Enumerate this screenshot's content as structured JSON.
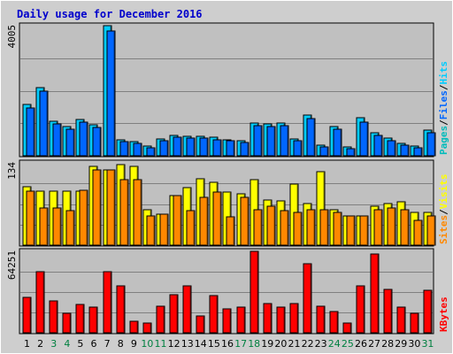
{
  "title": "Daily usage for December 2016",
  "colors": {
    "background": "#ffffff",
    "frame": "#cecece",
    "plot_bg": "#c0c0c0",
    "grid": "#808080",
    "title": "#0000cc",
    "hits": "#00ccff",
    "files": "#0066ff",
    "pages": "#00bbbb",
    "visits": "#ffff00",
    "sites": "#ff8800",
    "kbytes": "#ff0000",
    "weekend": "#008040",
    "day": "#000000"
  },
  "legends": {
    "top": [
      {
        "text": "Pages",
        "key": "pages"
      },
      {
        "text": "/",
        "key": "day"
      },
      {
        "text": "Files",
        "key": "files"
      },
      {
        "text": "/",
        "key": "day"
      },
      {
        "text": "Hits",
        "key": "hits"
      }
    ],
    "middle": [
      {
        "text": "Sites",
        "key": "sites"
      },
      {
        "text": "/",
        "key": "day"
      },
      {
        "text": "Visits",
        "key": "visits"
      }
    ],
    "bottom": [
      {
        "text": "KBytes",
        "key": "kbytes"
      }
    ]
  },
  "chart_data": {
    "type": "bar",
    "title": "Daily usage for December 2016",
    "categories": [
      "1",
      "2",
      "3",
      "4",
      "5",
      "6",
      "7",
      "8",
      "9",
      "10",
      "11",
      "12",
      "13",
      "14",
      "15",
      "16",
      "17",
      "18",
      "19",
      "20",
      "21",
      "22",
      "23",
      "24",
      "25",
      "26",
      "27",
      "28",
      "29",
      "30",
      "31"
    ],
    "weekend_days": [
      "3",
      "4",
      "10",
      "11",
      "17",
      "18",
      "24",
      "25",
      "31"
    ],
    "panels": [
      {
        "name": "top",
        "ymax_label": "4005",
        "ymax": 4005,
        "grid": true,
        "series": [
          {
            "name": "Hits",
            "color_key": "hits",
            "values": [
              1570,
              2100,
              1070,
              890,
              1130,
              950,
              4005,
              500,
              430,
              300,
              530,
              640,
              600,
              600,
              560,
              500,
              460,
              1000,
              980,
              1000,
              520,
              1260,
              320,
              910,
              280,
              1160,
              720,
              550,
              380,
              300,
              780
            ]
          },
          {
            "name": "Files",
            "color_key": "files",
            "values": [
              1470,
              2000,
              970,
              810,
              1030,
              870,
              3850,
              440,
              370,
              250,
              470,
              580,
              540,
              540,
              500,
              450,
              410,
              930,
              900,
              930,
              450,
              1150,
              270,
              820,
              230,
              1040,
              640,
              470,
              320,
              250,
              700
            ]
          },
          {
            "name": "Pages",
            "color_key": "pages",
            "values": [
              0,
              0,
              0,
              0,
              0,
              0,
              0,
              0,
              0,
              0,
              0,
              0,
              0,
              0,
              0,
              0,
              0,
              0,
              0,
              0,
              0,
              0,
              0,
              0,
              0,
              0,
              0,
              0,
              0,
              0,
              0
            ]
          }
        ]
      },
      {
        "name": "middle",
        "ymax_label": "134",
        "ymax": 134,
        "grid": true,
        "series": [
          {
            "name": "Visits",
            "color_key": "visits",
            "values": [
              95,
              88,
              88,
              88,
              88,
              128,
              123,
              131,
              128,
              58,
              50,
              81,
              93,
              108,
              103,
              86,
              83,
              106,
              73,
              72,
              100,
              68,
              120,
              58,
              48,
              48,
              63,
              68,
              71,
              53,
              53
            ]
          },
          {
            "name": "Sites",
            "color_key": "sites",
            "values": [
              88,
              61,
              61,
              56,
              90,
              123,
              123,
              106,
              106,
              48,
              50,
              81,
              56,
              78,
              86,
              46,
              78,
              58,
              63,
              56,
              53,
              58,
              58,
              53,
              48,
              48,
              58,
              61,
              58,
              41,
              48
            ]
          }
        ]
      },
      {
        "name": "bottom",
        "ymax_label": "64251",
        "ymax": 64251,
        "grid": true,
        "series": [
          {
            "name": "KBytes",
            "color_key": "kbytes",
            "values": [
              28000,
              48500,
              25000,
              15500,
              22000,
              20000,
              48500,
              37000,
              9000,
              7500,
              21000,
              30000,
              37000,
              13000,
              29000,
              19000,
              20000,
              64251,
              23000,
              20000,
              23000,
              54500,
              21000,
              17000,
              8000,
              37000,
              62000,
              34500,
              20000,
              15500,
              33500
            ]
          }
        ]
      }
    ]
  }
}
